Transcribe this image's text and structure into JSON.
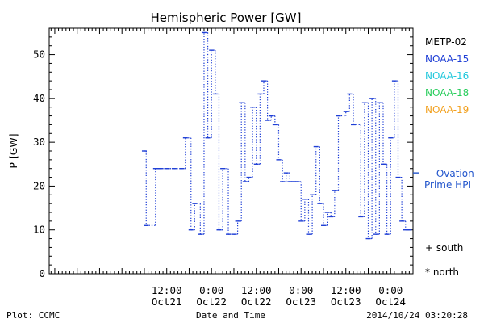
{
  "chart_data": {
    "type": "line",
    "title": "Hemispheric Power [GW]",
    "ylabel": "P [GW]",
    "xlabel": "Date and Time",
    "ylim": [
      0,
      56
    ],
    "yticks": [
      0,
      10,
      20,
      30,
      40,
      50
    ],
    "xlim": [
      "2014-10-20 04:30",
      "2014-10-24 06:00"
    ],
    "xticks": [
      {
        "time": "2014-10-21 12:00",
        "line1": "12:00",
        "line2": "Oct21"
      },
      {
        "time": "2014-10-22 00:00",
        "line1": "0:00",
        "line2": "Oct22"
      },
      {
        "time": "2014-10-22 12:00",
        "line1": "12:00",
        "line2": "Oct22"
      },
      {
        "time": "2014-10-23 00:00",
        "line1": "0:00",
        "line2": "Oct23"
      },
      {
        "time": "2014-10-23 12:00",
        "line1": "12:00",
        "line2": "Oct23"
      },
      {
        "time": "2014-10-24 00:00",
        "line1": "0:00",
        "line2": "Oct24"
      }
    ],
    "legend_placement": "right",
    "legend": [
      {
        "label": "METP-02",
        "color": "#000000"
      },
      {
        "label": "NOAA-15",
        "color": "#1f3fd6"
      },
      {
        "label": "NOAA-16",
        "color": "#22c8dc"
      },
      {
        "label": "NOAA-18",
        "color": "#26cc5a"
      },
      {
        "label": "NOAA-19",
        "color": "#f2a01e"
      }
    ],
    "ovation_label": [
      "— Ovation",
      "Prime HPI"
    ],
    "ovation_color": "#2255cc",
    "ovation_value": 23,
    "markers": [
      {
        "symbol": "+",
        "label": "south",
        "color": "#000000"
      },
      {
        "symbol": "*",
        "label": "north",
        "color": "#000000"
      }
    ],
    "series": [
      {
        "name": "NOAA-15",
        "color": "#1f3fd6",
        "points": [
          [
            "2014-10-21 06:00",
            28
          ],
          [
            "2014-10-21 06:30",
            11
          ],
          [
            "2014-10-21 09:00",
            24
          ],
          [
            "2014-10-21 10:00",
            24
          ],
          [
            "2014-10-21 10:20",
            24
          ],
          [
            "2014-10-21 12:10",
            24
          ],
          [
            "2014-10-21 14:00",
            24
          ],
          [
            "2014-10-21 16:00",
            24
          ],
          [
            "2014-10-21 17:00",
            31
          ],
          [
            "2014-10-21 18:30",
            10
          ],
          [
            "2014-10-21 19:30",
            16
          ],
          [
            "2014-10-21 21:00",
            9
          ],
          [
            "2014-10-21 22:00",
            55
          ],
          [
            "2014-10-21 23:00",
            31
          ],
          [
            "2014-10-22 00:00",
            51
          ],
          [
            "2014-10-22 01:00",
            41
          ],
          [
            "2014-10-22 02:00",
            10
          ],
          [
            "2014-10-22 03:00",
            24
          ],
          [
            "2014-10-22 04:30",
            9
          ],
          [
            "2014-10-22 06:00",
            9
          ],
          [
            "2014-10-22 07:00",
            12
          ],
          [
            "2014-10-22 08:00",
            39
          ],
          [
            "2014-10-22 09:00",
            21
          ],
          [
            "2014-10-22 10:00",
            22
          ],
          [
            "2014-10-22 11:00",
            38
          ],
          [
            "2014-10-22 12:00",
            25
          ],
          [
            "2014-10-22 13:00",
            41
          ],
          [
            "2014-10-22 14:00",
            44
          ],
          [
            "2014-10-22 15:00",
            35
          ],
          [
            "2014-10-22 16:00",
            36
          ],
          [
            "2014-10-22 17:00",
            34
          ],
          [
            "2014-10-22 18:00",
            26
          ],
          [
            "2014-10-22 19:00",
            21
          ],
          [
            "2014-10-22 20:00",
            23
          ],
          [
            "2014-10-22 21:00",
            21
          ],
          [
            "2014-10-22 22:00",
            21
          ],
          [
            "2014-10-22 23:00",
            21
          ],
          [
            "2014-10-23 00:00",
            12
          ],
          [
            "2014-10-23 01:00",
            17
          ],
          [
            "2014-10-23 02:00",
            9
          ],
          [
            "2014-10-23 03:00",
            18
          ],
          [
            "2014-10-23 04:00",
            29
          ],
          [
            "2014-10-23 05:00",
            16
          ],
          [
            "2014-10-23 06:00",
            11
          ],
          [
            "2014-10-23 07:00",
            14
          ],
          [
            "2014-10-23 08:00",
            13
          ],
          [
            "2014-10-23 09:00",
            19
          ],
          [
            "2014-10-23 10:00",
            36
          ],
          [
            "2014-10-23 12:00",
            37
          ],
          [
            "2014-10-23 13:00",
            41
          ],
          [
            "2014-10-23 14:00",
            34
          ],
          [
            "2014-10-23 16:00",
            13
          ],
          [
            "2014-10-23 17:00",
            39
          ],
          [
            "2014-10-23 18:00",
            8
          ],
          [
            "2014-10-23 19:00",
            40
          ],
          [
            "2014-10-23 20:00",
            9
          ],
          [
            "2014-10-23 21:00",
            39
          ],
          [
            "2014-10-23 22:00",
            25
          ],
          [
            "2014-10-23 23:00",
            9
          ],
          [
            "2014-10-24 00:00",
            31
          ],
          [
            "2014-10-24 01:00",
            44
          ],
          [
            "2014-10-24 02:00",
            22
          ],
          [
            "2014-10-24 03:00",
            12
          ],
          [
            "2014-10-24 04:00",
            10
          ],
          [
            "2014-10-24 05:00",
            10
          ]
        ]
      }
    ]
  },
  "footer": {
    "left": "Plot: CCMC",
    "center": "Date and Time",
    "right": "2014/10/24 03:20:28"
  }
}
